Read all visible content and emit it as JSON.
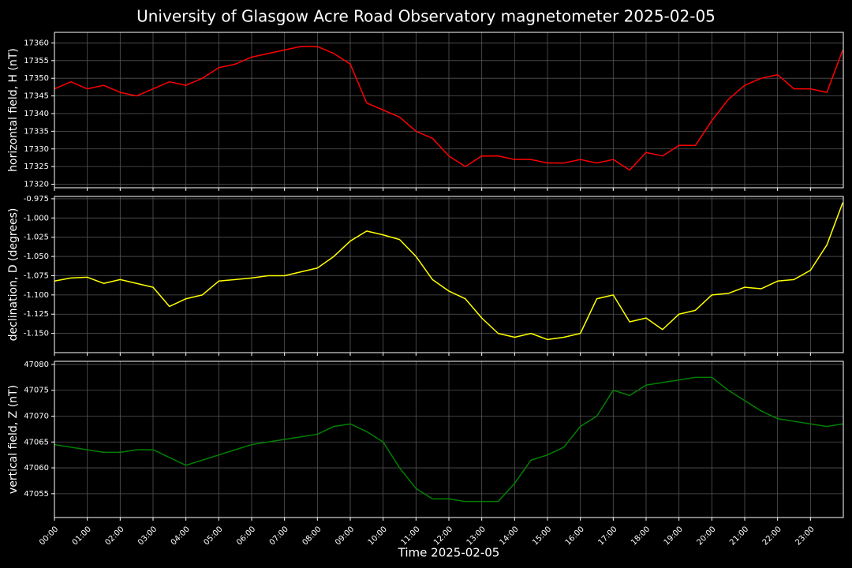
{
  "title": "University of Glasgow Acre Road Observatory magnetometer 2025-02-05",
  "x_axis": {
    "label": "Time 2025-02-05",
    "lim": [
      "00:00",
      "24:00"
    ],
    "ticks": [
      "00:00",
      "01:00",
      "02:00",
      "03:00",
      "04:00",
      "05:00",
      "06:00",
      "07:00",
      "08:00",
      "09:00",
      "10:00",
      "11:00",
      "12:00",
      "13:00",
      "14:00",
      "15:00",
      "16:00",
      "17:00",
      "18:00",
      "19:00",
      "20:00",
      "21:00",
      "22:00",
      "23:00"
    ]
  },
  "x": [
    "00:00",
    "00:30",
    "01:00",
    "01:30",
    "02:00",
    "02:30",
    "03:00",
    "03:30",
    "04:00",
    "04:30",
    "05:00",
    "05:30",
    "06:00",
    "06:30",
    "07:00",
    "07:30",
    "08:00",
    "08:30",
    "09:00",
    "09:30",
    "10:00",
    "10:30",
    "11:00",
    "11:30",
    "12:00",
    "12:30",
    "13:00",
    "13:30",
    "14:00",
    "14:30",
    "15:00",
    "15:30",
    "16:00",
    "16:30",
    "17:00",
    "17:30",
    "18:00",
    "18:30",
    "19:00",
    "19:30",
    "20:00",
    "20:30",
    "21:00",
    "21:30",
    "22:00",
    "22:30",
    "23:00",
    "23:30",
    "23:59"
  ],
  "chart_data": [
    {
      "type": "line",
      "ylabel": "horizontal field, H (nT)",
      "color": "#ff0000",
      "grid": true,
      "ylim": [
        17319,
        17363
      ],
      "yticks": [
        17320,
        17325,
        17330,
        17335,
        17340,
        17345,
        17350,
        17355,
        17360
      ],
      "values": [
        17347,
        17349,
        17347,
        17348,
        17346,
        17345,
        17347,
        17349,
        17348,
        17350,
        17353,
        17354,
        17356,
        17357,
        17358,
        17359,
        17359,
        17357,
        17354,
        17343,
        17341,
        17339,
        17335,
        17333,
        17328,
        17325,
        17328,
        17328,
        17327,
        17327,
        17326,
        17326,
        17327,
        17326,
        17327,
        17324,
        17329,
        17328,
        17331,
        17331,
        17338,
        17344,
        17348,
        17350,
        17351,
        17347,
        17347,
        17346,
        17358
      ]
    },
    {
      "type": "line",
      "ylabel": "declination, D (degrees)",
      "color": "#ffff00",
      "grid": true,
      "ylim": [
        -1.175,
        -0.972
      ],
      "yticks": [
        {
          "value": -1.15,
          "label": "-1.150"
        },
        -1.125,
        {
          "value": -1.1,
          "label": "-1.100"
        },
        -1.075,
        {
          "value": -1.05,
          "label": "-1.050"
        },
        -1.025,
        {
          "value": -1.0,
          "label": "-1.000"
        },
        -0.975
      ],
      "values": [
        -1.082,
        -1.078,
        -1.077,
        -1.085,
        -1.08,
        -1.085,
        -1.09,
        -1.115,
        -1.105,
        -1.1,
        -1.082,
        -1.08,
        -1.078,
        -1.075,
        -1.075,
        -1.07,
        -1.065,
        -1.05,
        -1.03,
        -1.017,
        -1.022,
        -1.028,
        -1.05,
        -1.08,
        -1.095,
        -1.105,
        -1.13,
        -1.15,
        -1.155,
        -1.15,
        -1.158,
        -1.155,
        -1.15,
        -1.105,
        -1.1,
        -1.135,
        -1.13,
        -1.145,
        -1.125,
        -1.12,
        -1.1,
        -1.098,
        -1.09,
        -1.092,
        -1.082,
        -1.08,
        -1.068,
        -1.035,
        -0.98
      ]
    },
    {
      "type": "line",
      "ylabel": "vertical field, Z (nT)",
      "color": "#008000",
      "grid": true,
      "ylim": [
        47050.4,
        47080.6
      ],
      "yticks": [
        47055,
        47060,
        47065,
        47070,
        47075,
        47080
      ],
      "values": [
        47064.5,
        47064,
        47063.5,
        47063,
        47063,
        47063.5,
        47063.5,
        47062,
        47060.5,
        47061.5,
        47062.5,
        47063.5,
        47064.5,
        47065,
        47065.5,
        47066,
        47066.5,
        47068,
        47068.5,
        47067,
        47065,
        47060,
        47056,
        47054,
        47054,
        47053.5,
        47053.5,
        47053.5,
        47057,
        47061.5,
        47062.5,
        47064,
        47068,
        47070,
        47075,
        47074,
        47076,
        47076.5,
        47077,
        47077.5,
        47077.5,
        47075,
        47073,
        47071,
        47069.5,
        47069,
        47068.5,
        47068,
        47068.5
      ]
    }
  ]
}
